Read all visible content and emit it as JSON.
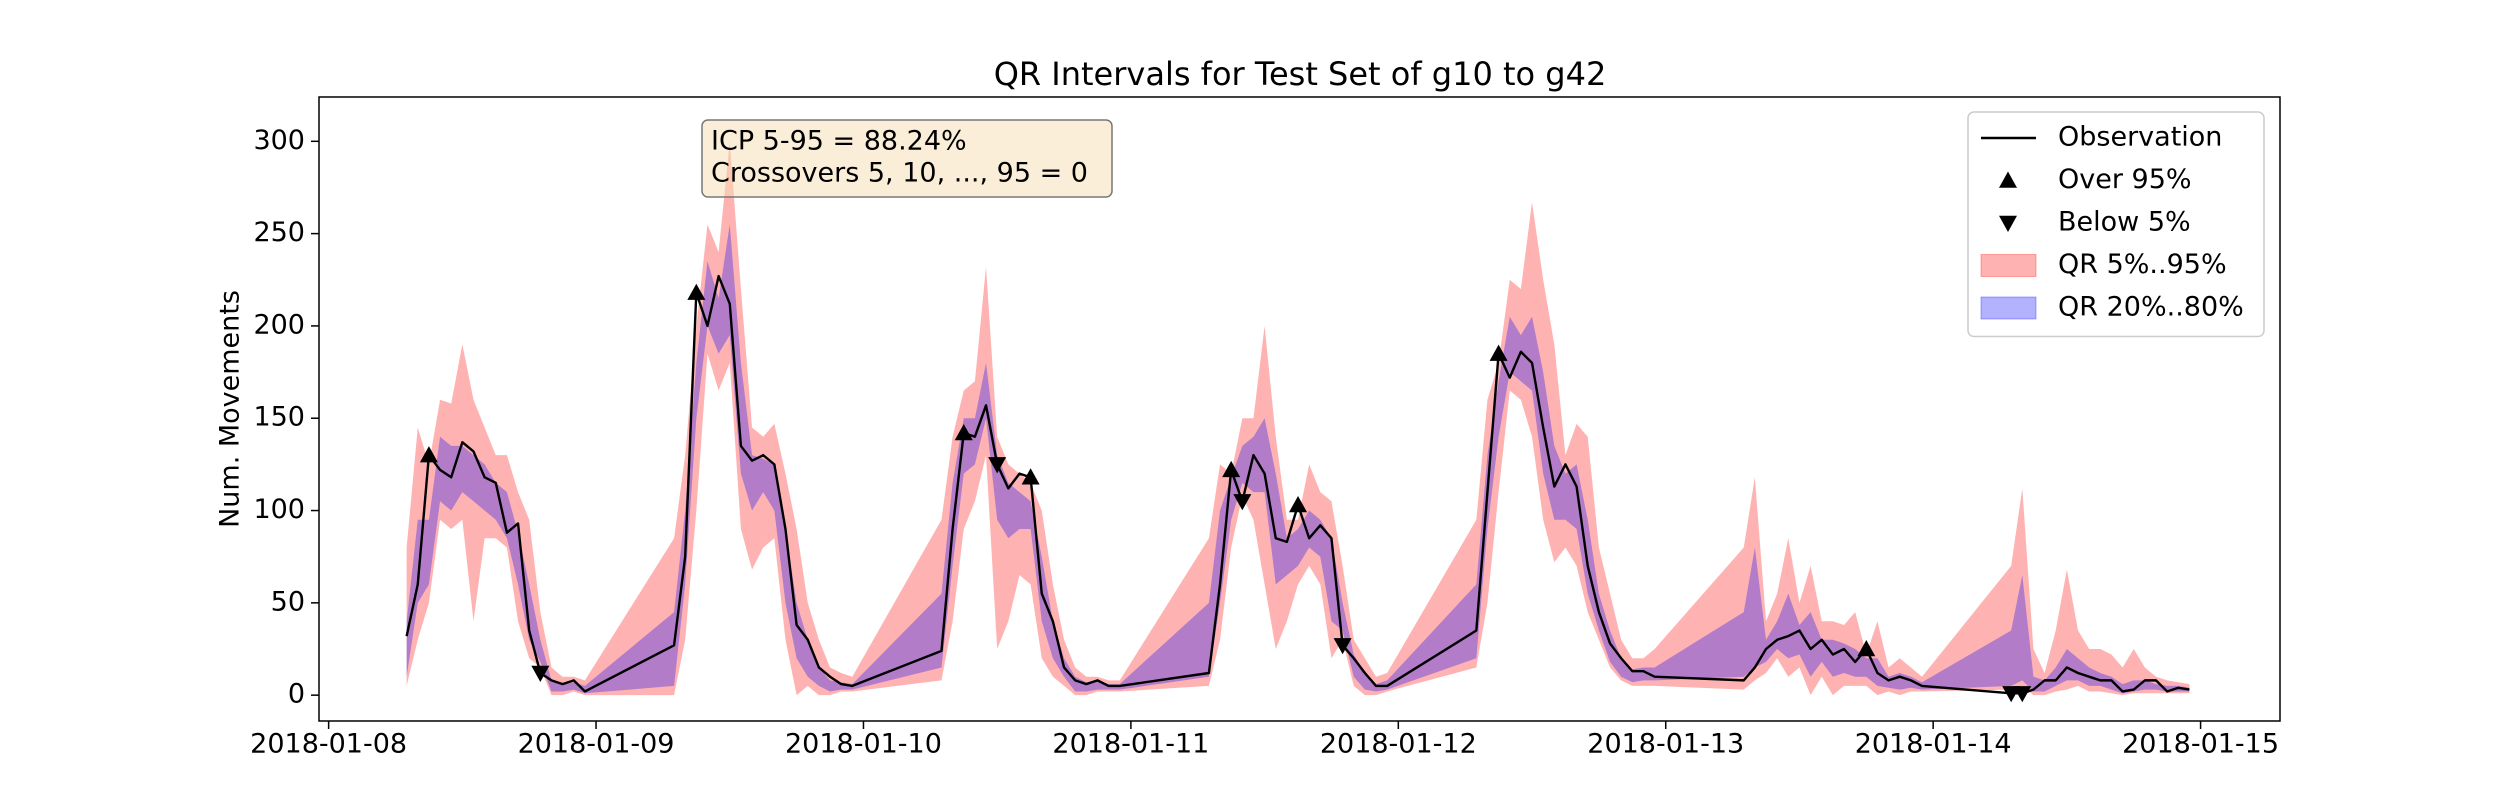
{
  "chart_data": {
    "type": "line",
    "title": "QR Intervals for Test Set of g10 to g42",
    "ylabel": "Num. Movements",
    "annotations": [
      "ICP 5-95 = 88.24%",
      "Crossovers 5, 10, ..., 95 = 0"
    ],
    "legend": "upper right",
    "xlim": [
      17538.964,
      17546.297
    ],
    "ylim": [
      -14,
      324
    ],
    "xticks": [
      {
        "value": 17539,
        "label": "2018-01-08"
      },
      {
        "value": 17540,
        "label": "2018-01-09"
      },
      {
        "value": 17541,
        "label": "2018-01-10"
      },
      {
        "value": 17542,
        "label": "2018-01-11"
      },
      {
        "value": 17543,
        "label": "2018-01-12"
      },
      {
        "value": 17544,
        "label": "2018-01-13"
      },
      {
        "value": 17545,
        "label": "2018-01-14"
      },
      {
        "value": 17546,
        "label": "2018-01-15"
      }
    ],
    "yticks": [
      0,
      50,
      100,
      150,
      200,
      250,
      300
    ],
    "x": [
      17539.2917,
      17539.3333,
      17539.375,
      17539.4167,
      17539.4583,
      17539.5,
      17539.5417,
      17539.5833,
      17539.625,
      17539.6667,
      17539.7083,
      17539.75,
      17539.7917,
      17539.8333,
      17539.875,
      17539.9167,
      17539.9583,
      17540.2917,
      17540.3333,
      17540.375,
      17540.4167,
      17540.4583,
      17540.5,
      17540.5417,
      17540.5833,
      17540.625,
      17540.6667,
      17540.7083,
      17540.75,
      17540.7917,
      17540.8333,
      17540.875,
      17540.9167,
      17540.9583,
      17541.2917,
      17541.3333,
      17541.375,
      17541.4167,
      17541.4583,
      17541.5,
      17541.5417,
      17541.5833,
      17541.625,
      17541.6667,
      17541.7083,
      17541.75,
      17541.7917,
      17541.8333,
      17541.875,
      17541.9167,
      17541.9583,
      17542.2917,
      17542.3333,
      17542.375,
      17542.4167,
      17542.4583,
      17542.5,
      17542.5417,
      17542.5833,
      17542.625,
      17542.6667,
      17542.7083,
      17542.75,
      17542.7917,
      17542.8333,
      17542.875,
      17542.9167,
      17542.9583,
      17543.2917,
      17543.3333,
      17543.375,
      17543.4167,
      17543.4583,
      17543.5,
      17543.5417,
      17543.5833,
      17543.625,
      17543.6667,
      17543.7083,
      17543.75,
      17543.7917,
      17543.8333,
      17543.875,
      17543.9167,
      17543.9583,
      17544.2917,
      17544.3333,
      17544.375,
      17544.4167,
      17544.4583,
      17544.5,
      17544.5417,
      17544.5833,
      17544.625,
      17544.6667,
      17544.7083,
      17544.75,
      17544.7917,
      17544.8333,
      17544.875,
      17544.9167,
      17544.9583,
      17545.2917,
      17545.3333,
      17545.375,
      17545.4167,
      17545.4583,
      17545.5,
      17545.5417,
      17545.5833,
      17545.625,
      17545.6667,
      17545.7083,
      17545.75,
      17545.7917,
      17545.8333,
      17545.875,
      17545.9167,
      17545.9583
    ],
    "series": [
      {
        "name": "Observation",
        "type": "line",
        "color": "#000000",
        "values": [
          32,
          60,
          130,
          122,
          118,
          137,
          132,
          118,
          115,
          88,
          93,
          35,
          12,
          8,
          6,
          8,
          2,
          27,
          75,
          218,
          200,
          227,
          212,
          135,
          127,
          130,
          125,
          90,
          38,
          30,
          15,
          10,
          6,
          5,
          24,
          90,
          142,
          140,
          157,
          125,
          112,
          120,
          118,
          55,
          40,
          15,
          8,
          6,
          8,
          5,
          5,
          12,
          60,
          122,
          105,
          130,
          120,
          85,
          83,
          103,
          85,
          92,
          85,
          27,
          20,
          12,
          5,
          5,
          35,
          110,
          185,
          172,
          186,
          180,
          145,
          113,
          125,
          113,
          70,
          45,
          28,
          20,
          13,
          13,
          10,
          8,
          15,
          25,
          30,
          32,
          35,
          25,
          30,
          22,
          25,
          18,
          25,
          12,
          8,
          10,
          8,
          5,
          1,
          1,
          3,
          8,
          8,
          15,
          12,
          10,
          8,
          8,
          2,
          3,
          8,
          8,
          2,
          4,
          3
        ]
      },
      {
        "name": "Over 95%",
        "type": "scatter",
        "marker": "triangle-up",
        "color": "#000000",
        "x": [
          17539.375,
          17540.375,
          17541.375,
          17541.625,
          17542.375,
          17542.625,
          17543.375,
          17544.75
        ],
        "values": [
          130,
          218,
          142,
          118,
          122,
          103,
          185,
          25
        ]
      },
      {
        "name": "Below 5%",
        "type": "scatter",
        "marker": "triangle-down",
        "color": "#000000",
        "x": [
          17539.7917,
          17541.5,
          17542.4167,
          17542.7917,
          17545.2917,
          17545.3333
        ],
        "values": [
          12,
          125,
          105,
          27,
          1,
          1
        ]
      },
      {
        "name": "QR 5%..95%",
        "type": "area",
        "color": "#ff0000",
        "opacity": 0.3,
        "lower": [
          5,
          30,
          50,
          95,
          90,
          95,
          40,
          85,
          85,
          80,
          40,
          20,
          15,
          0,
          0,
          2,
          0,
          0,
          30,
          100,
          185,
          165,
          180,
          90,
          68,
          80,
          85,
          30,
          0,
          5,
          0,
          0,
          2,
          2,
          8,
          40,
          90,
          105,
          130,
          25,
          40,
          65,
          60,
          20,
          10,
          5,
          0,
          0,
          2,
          2,
          2,
          5,
          30,
          80,
          108,
          95,
          60,
          25,
          40,
          60,
          70,
          60,
          20,
          30,
          5,
          0,
          0,
          2,
          15,
          50,
          110,
          165,
          160,
          140,
          95,
          72,
          80,
          70,
          45,
          30,
          15,
          8,
          5,
          5,
          5,
          3,
          8,
          12,
          20,
          10,
          15,
          0,
          10,
          0,
          5,
          5,
          5,
          0,
          2,
          0,
          2,
          2,
          3,
          5,
          0,
          0,
          2,
          3,
          5,
          2,
          2,
          1,
          0,
          1,
          1,
          1,
          1,
          1,
          1
        ],
        "upper": [
          80,
          145,
          125,
          160,
          158,
          190,
          160,
          145,
          130,
          130,
          110,
          95,
          45,
          15,
          10,
          10,
          8,
          85,
          130,
          200,
          255,
          240,
          300,
          220,
          145,
          140,
          147,
          120,
          90,
          50,
          30,
          15,
          12,
          10,
          95,
          140,
          165,
          170,
          232,
          140,
          125,
          120,
          115,
          100,
          60,
          30,
          15,
          10,
          10,
          8,
          8,
          85,
          125,
          120,
          150,
          150,
          200,
          140,
          95,
          95,
          125,
          110,
          105,
          70,
          30,
          20,
          10,
          12,
          95,
          160,
          180,
          225,
          220,
          267,
          225,
          190,
          130,
          147,
          140,
          80,
          55,
          30,
          20,
          20,
          25,
          80,
          118,
          40,
          55,
          85,
          50,
          70,
          40,
          40,
          38,
          45,
          22,
          40,
          15,
          20,
          15,
          10,
          70,
          112,
          25,
          12,
          35,
          68,
          35,
          25,
          25,
          22,
          15,
          25,
          15,
          10,
          8,
          7,
          6
        ]
      },
      {
        "name": "QR 20%..80%",
        "type": "area",
        "color": "#0000ff",
        "opacity": 0.3,
        "lower": [
          10,
          50,
          60,
          105,
          100,
          110,
          105,
          100,
          95,
          85,
          60,
          30,
          18,
          2,
          2,
          3,
          1,
          5,
          60,
          150,
          200,
          185,
          195,
          120,
          100,
          110,
          100,
          50,
          20,
          10,
          5,
          2,
          3,
          3,
          15,
          70,
          120,
          125,
          150,
          95,
          85,
          90,
          90,
          40,
          20,
          10,
          2,
          2,
          3,
          3,
          3,
          10,
          50,
          95,
          115,
          110,
          110,
          60,
          65,
          70,
          80,
          75,
          40,
          35,
          10,
          3,
          2,
          3,
          20,
          90,
          140,
          175,
          170,
          165,
          120,
          95,
          95,
          90,
          55,
          35,
          18,
          10,
          7,
          8,
          8,
          10,
          15,
          18,
          25,
          20,
          22,
          10,
          18,
          10,
          12,
          10,
          10,
          5,
          4,
          3,
          4,
          3,
          5,
          8,
          2,
          2,
          5,
          8,
          8,
          5,
          5,
          3,
          1,
          2,
          3,
          3,
          2,
          2,
          2
        ],
        "upper": [
          40,
          95,
          95,
          140,
          135,
          135,
          130,
          125,
          115,
          110,
          88,
          60,
          30,
          8,
          6,
          7,
          5,
          45,
          100,
          180,
          235,
          215,
          255,
          180,
          130,
          128,
          125,
          90,
          50,
          30,
          15,
          8,
          7,
          6,
          55,
          115,
          150,
          150,
          180,
          130,
          115,
          110,
          105,
          75,
          40,
          20,
          10,
          7,
          8,
          6,
          6,
          50,
          100,
          118,
          135,
          140,
          150,
          120,
          85,
          90,
          100,
          95,
          85,
          50,
          22,
          12,
          6,
          8,
          60,
          130,
          170,
          205,
          195,
          205,
          175,
          135,
          120,
          125,
          95,
          55,
          35,
          20,
          14,
          15,
          15,
          45,
          80,
          30,
          40,
          55,
          38,
          45,
          30,
          30,
          28,
          25,
          20,
          20,
          10,
          12,
          10,
          7,
          35,
          65,
          10,
          8,
          15,
          25,
          20,
          15,
          12,
          10,
          6,
          8,
          8,
          6,
          5,
          5,
          4
        ]
      }
    ]
  }
}
